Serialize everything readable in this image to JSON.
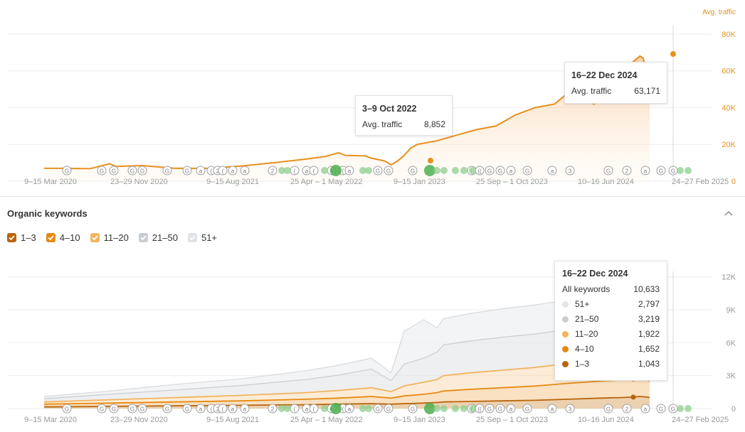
{
  "traffic_panel": {
    "tooltip_oct2022": {
      "title": "3–9 Oct 2022",
      "label": "Avg. traffic",
      "value": "8,852"
    },
    "tooltip_dec2024": {
      "title": "16–22 Dec 2024",
      "label": "Avg. traffic",
      "value": "63,171"
    }
  },
  "keywords_panel": {
    "title": "Organic keywords",
    "legend": [
      {
        "label": "1–3",
        "color": "#b8650b"
      },
      {
        "label": "4–10",
        "color": "#e68a12"
      },
      {
        "label": "11–20",
        "color": "#f2b45f"
      },
      {
        "label": "21–50",
        "color": "#c9cdd1"
      },
      {
        "label": "51+",
        "color": "#dfe2e5"
      }
    ],
    "tooltip": {
      "title": "16–22 Dec 2024",
      "total_label": "All keywords",
      "total_value": "10,633",
      "rows": [
        {
          "label": "51+",
          "value": "2,797",
          "color": "#e3e5e7"
        },
        {
          "label": "21–50",
          "value": "3,219",
          "color": "#c9cdd1"
        },
        {
          "label": "11–20",
          "value": "1,922",
          "color": "#f2b45f"
        },
        {
          "label": "4–10",
          "value": "1,652",
          "color": "#e68a12"
        },
        {
          "label": "1–3",
          "value": "1,043",
          "color": "#b8650b"
        }
      ]
    }
  },
  "colors": {
    "traffic_line": "#e8901e",
    "traffic_label": "#e8901e",
    "grid": "#eeeeee",
    "axis_text": "#999999",
    "marker_green": "#8fce8f",
    "marker_green_dark": "#4caf50"
  },
  "chart_data": [
    {
      "type": "area",
      "title": "",
      "ylabel": "Avg. traffic",
      "ylim": [
        0,
        85000
      ],
      "yticks": [
        "80K",
        "60K",
        "40K",
        "20K",
        "0"
      ],
      "xticks": [
        "9–15 Mar 2020",
        "23–29 Nov 2020",
        "9–15 Aug 2021",
        "25 Apr – 1 May 2022",
        "9–15 Jan 2023",
        "25 Sep – 1 Oct 2023",
        "10–16 Jun 2024",
        "24–27 Feb 2025"
      ],
      "x": [
        0,
        0.03,
        0.07,
        0.1,
        0.11,
        0.15,
        0.2,
        0.25,
        0.3,
        0.35,
        0.4,
        0.43,
        0.45,
        0.46,
        0.49,
        0.5,
        0.52,
        0.53,
        0.54,
        0.55,
        0.56,
        0.57,
        0.6,
        0.63,
        0.66,
        0.69,
        0.72,
        0.75,
        0.78,
        0.8,
        0.82,
        0.84,
        0.86,
        0.87,
        0.88,
        0.9,
        0.91,
        0.915,
        0.92,
        0.925
      ],
      "series": [
        {
          "name": "Avg. traffic",
          "values": [
            7000,
            7000,
            6800,
            9500,
            8000,
            8500,
            7000,
            7000,
            8200,
            10000,
            12000,
            13500,
            15500,
            14000,
            13800,
            12500,
            11000,
            8852,
            11000,
            14000,
            18000,
            20000,
            22000,
            25000,
            28000,
            30000,
            36000,
            40000,
            42000,
            48000,
            45000,
            42000,
            48000,
            52000,
            60000,
            65000,
            68000,
            67000,
            60000,
            50000
          ]
        }
      ],
      "annotations": [
        {
          "x_label": "3–9 Oct 2022",
          "value": 8852
        },
        {
          "x_label": "16–22 Dec 2024",
          "value": 63171
        }
      ]
    },
    {
      "type": "area",
      "title": "Organic keywords",
      "ylim": [
        0,
        12500
      ],
      "yticks": [
        "12K",
        "9K",
        "6K",
        "3K",
        "0"
      ],
      "xticks": [
        "9–15 Mar 2020",
        "23–29 Nov 2020",
        "9–15 Aug 2021",
        "25 Apr – 1 May 2022",
        "9–15 Jan 2023",
        "25 Sep – 1 Oct 2023",
        "10–16 Jun 2024",
        "24–27 Feb 2025"
      ],
      "x": [
        0,
        0.1,
        0.2,
        0.3,
        0.4,
        0.45,
        0.5,
        0.53,
        0.55,
        0.58,
        0.6,
        0.61,
        0.65,
        0.7,
        0.75,
        0.8,
        0.85,
        0.88,
        0.9,
        0.91,
        0.92,
        0.925
      ],
      "series": [
        {
          "name": "1–3",
          "values": [
            150,
            200,
            250,
            300,
            350,
            400,
            450,
            400,
            450,
            500,
            550,
            600,
            650,
            700,
            750,
            850,
            950,
            1000,
            1043,
            1100,
            1050,
            1000
          ]
        },
        {
          "name": "4–10",
          "values": [
            250,
            300,
            350,
            400,
            500,
            550,
            650,
            550,
            700,
            800,
            900,
            1000,
            1100,
            1200,
            1300,
            1450,
            1550,
            1600,
            1652,
            1700,
            1600,
            1500
          ]
        },
        {
          "name": "11–20",
          "values": [
            200,
            300,
            400,
            500,
            600,
            700,
            800,
            600,
            900,
            1100,
            1200,
            1400,
            1500,
            1600,
            1700,
            1800,
            1900,
            1950,
            1922,
            1900,
            1700,
            1500
          ]
        },
        {
          "name": "21–50",
          "values": [
            300,
            500,
            700,
            900,
            1200,
            1400,
            1700,
            1000,
            2000,
            2200,
            2500,
            2800,
            2900,
            3000,
            3050,
            3100,
            3150,
            3200,
            3219,
            3150,
            3000,
            2800
          ]
        },
        {
          "name": "51+",
          "values": [
            200,
            300,
            500,
            600,
            800,
            900,
            1000,
            700,
            3000,
            3500,
            2200,
            2400,
            2500,
            2600,
            2650,
            2700,
            2750,
            2800,
            2797,
            2850,
            2700,
            2600
          ]
        }
      ]
    }
  ]
}
